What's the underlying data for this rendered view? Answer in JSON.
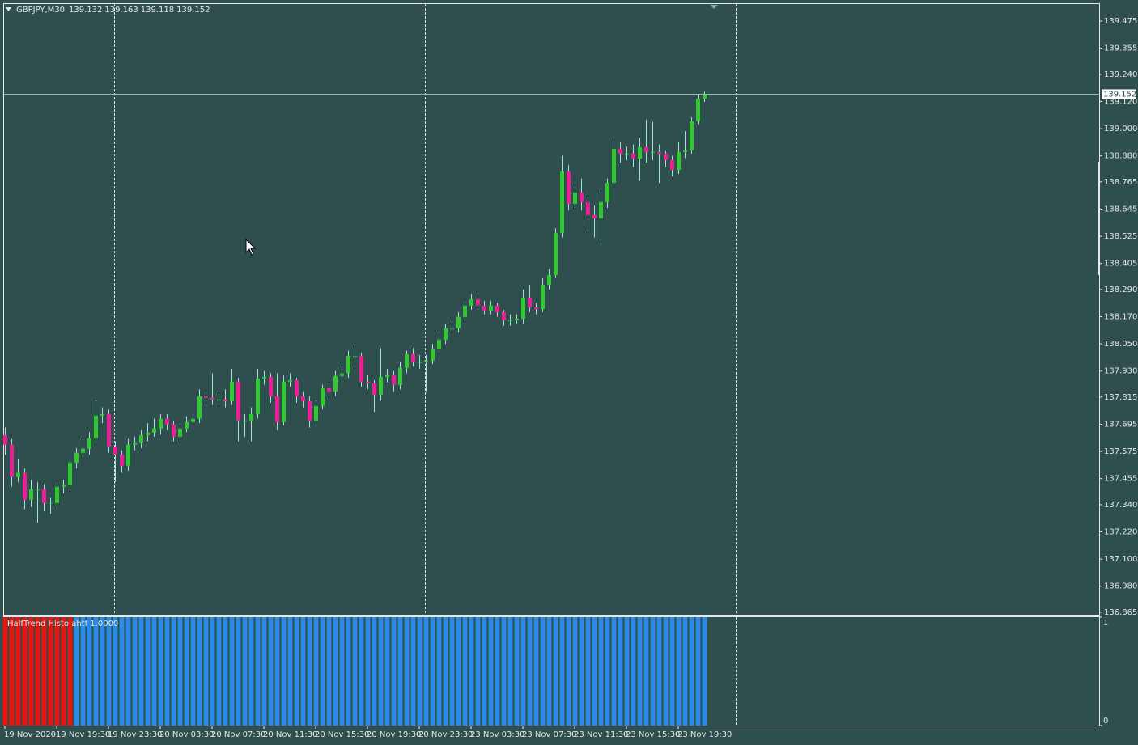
{
  "chart_data": [
    {
      "type": "candlestick",
      "symbol": "GBPJPY,M30",
      "up_color": "#32c832",
      "down_color": "#ec1e94",
      "wick_color": "#9fe3d2",
      "ylim": [
        136.854,
        139.55
      ],
      "yticks": [
        139.475,
        139.355,
        {
          "value": 139.24,
          "label": "139.240"
        },
        {
          "value": 139.12,
          "label": "139.120"
        },
        {
          "value": 139,
          "label": "139.000"
        },
        {
          "value": 138.88,
          "label": "138.880"
        },
        138.765,
        138.645,
        138.525,
        138.405,
        {
          "value": 138.29,
          "label": "138.290"
        },
        {
          "value": 138.17,
          "label": "138.170"
        },
        {
          "value": 138.05,
          "label": "138.050"
        },
        {
          "value": 137.93,
          "label": "137.930"
        },
        137.815,
        137.695,
        137.575,
        137.455,
        {
          "value": 137.34,
          "label": "137.340"
        },
        {
          "value": 137.22,
          "label": "137.220"
        },
        {
          "value": 137.1,
          "label": "137.100"
        },
        {
          "value": 136.98,
          "label": "136.980"
        },
        136.865
      ],
      "categories": [
        "19 Nov 2020",
        null,
        null,
        null,
        null,
        null,
        null,
        null,
        "19 Nov 19:30",
        null,
        null,
        null,
        null,
        null,
        null,
        null,
        "19 Nov 23:30",
        null,
        null,
        null,
        null,
        null,
        null,
        null,
        "20 Nov 03:30",
        null,
        null,
        null,
        null,
        null,
        null,
        null,
        "20 Nov 07:30",
        null,
        null,
        null,
        null,
        null,
        null,
        null,
        "20 Nov 11:30",
        null,
        null,
        null,
        null,
        null,
        null,
        null,
        "20 Nov 15:30",
        null,
        null,
        null,
        null,
        null,
        null,
        null,
        "20 Nov 19:30",
        null,
        null,
        null,
        null,
        null,
        null,
        null,
        "20 Nov 23:30",
        null,
        null,
        null,
        null,
        null,
        null,
        null,
        "23 Nov 03:30",
        null,
        null,
        null,
        null,
        null,
        null,
        null,
        "23 Nov 07:30",
        null,
        null,
        null,
        null,
        null,
        null,
        null,
        "23 Nov 11:30",
        null,
        null,
        null,
        null,
        null,
        null,
        null,
        "23 Nov 15:30",
        null,
        null,
        null,
        null,
        null,
        null,
        null,
        "23 Nov 19:30",
        null,
        null,
        null,
        null
      ],
      "open": [
        137.647,
        137.605,
        137.462,
        137.48,
        137.362,
        137.408,
        137.408,
        137.347,
        137.347,
        137.419,
        137.426,
        137.526,
        137.569,
        137.587,
        137.633,
        137.733,
        137.74,
        137.597,
        137.562,
        137.512,
        137.605,
        137.612,
        137.647,
        137.658,
        137.676,
        137.719,
        137.694,
        137.64,
        137.676,
        137.705,
        137.719,
        137.819,
        137.812,
        137.804,
        137.804,
        137.797,
        137.883,
        137.712,
        137.712,
        137.74,
        137.897,
        137.904,
        137.819,
        137.705,
        137.883,
        137.89,
        137.819,
        137.797,
        137.712,
        137.776,
        137.854,
        137.84,
        137.908,
        137.919,
        137.997,
        137.997,
        137.883,
        137.876,
        137.826,
        137.904,
        137.912,
        137.869,
        137.944,
        138.004,
        137.969,
        137.969,
        137.976,
        138.026,
        138.069,
        138.119,
        138.119,
        138.169,
        138.219,
        138.247,
        138.219,
        138.197,
        138.219,
        138.19,
        138.154,
        138.154,
        138.161,
        138.254,
        138.211,
        138.204,
        138.311,
        138.354,
        138.54,
        138.811,
        138.668,
        138.718,
        138.676,
        138.618,
        138.604,
        138.676,
        138.761,
        138.911,
        138.89,
        138.89,
        138.868,
        138.918,
        138.897,
        138.897,
        138.89,
        138.861,
        138.818,
        138.897,
        138.904,
        139.033,
        139.132
      ],
      "high": [
        137.68,
        137.63,
        137.54,
        137.5,
        137.45,
        137.44,
        137.43,
        137.37,
        137.44,
        137.45,
        137.54,
        137.59,
        137.63,
        137.66,
        137.8,
        137.77,
        137.76,
        137.62,
        137.58,
        137.63,
        137.64,
        137.67,
        137.7,
        137.72,
        137.74,
        137.74,
        137.71,
        137.7,
        137.73,
        137.74,
        137.85,
        137.84,
        137.92,
        137.83,
        137.85,
        137.94,
        137.9,
        137.74,
        137.77,
        137.94,
        137.93,
        137.92,
        137.92,
        137.91,
        137.92,
        137.9,
        137.84,
        137.82,
        137.8,
        137.87,
        137.88,
        137.93,
        137.95,
        138.02,
        138.05,
        138.01,
        137.91,
        137.89,
        138.03,
        137.94,
        137.93,
        137.97,
        138.02,
        138.03,
        138,
        138,
        138.05,
        138.09,
        138.14,
        138.15,
        138.19,
        138.24,
        138.27,
        138.26,
        138.24,
        138.24,
        138.23,
        138.2,
        138.18,
        138.18,
        138.29,
        138.31,
        138.23,
        138.34,
        138.38,
        138.56,
        138.88,
        138.84,
        138.76,
        138.78,
        138.7,
        138.66,
        138.72,
        138.78,
        138.96,
        138.94,
        138.92,
        138.93,
        138.96,
        139.04,
        139.03,
        138.93,
        138.9,
        138.88,
        138.94,
        138.99,
        139.05,
        139.15,
        139.163
      ],
      "low": [
        137.56,
        137.42,
        137.44,
        137.32,
        137.33,
        137.26,
        137.31,
        137.3,
        137.32,
        137.39,
        137.4,
        137.5,
        137.55,
        137.56,
        137.61,
        137.7,
        137.57,
        137.44,
        137.48,
        137.49,
        137.58,
        137.59,
        137.62,
        137.64,
        137.65,
        137.67,
        137.62,
        137.62,
        137.66,
        137.69,
        137.7,
        137.79,
        137.78,
        137.78,
        137.77,
        137.78,
        137.62,
        137.64,
        137.62,
        137.72,
        137.87,
        137.79,
        137.67,
        137.69,
        137.86,
        137.79,
        137.77,
        137.68,
        137.69,
        137.76,
        137.82,
        137.82,
        137.89,
        137.9,
        137.96,
        137.86,
        137.85,
        137.75,
        137.8,
        137.88,
        137.84,
        137.85,
        137.92,
        137.95,
        137.94,
        137.84,
        137.96,
        138.01,
        138.05,
        138.09,
        138.1,
        138.15,
        138.2,
        138.2,
        138.18,
        138.18,
        138.17,
        138.13,
        138.13,
        138.14,
        138.14,
        138.19,
        138.18,
        138.19,
        138.29,
        138.34,
        138.52,
        138.64,
        138.65,
        138.64,
        138.56,
        138.52,
        138.49,
        138.65,
        138.74,
        138.85,
        138.86,
        138.83,
        138.77,
        138.85,
        138.86,
        138.76,
        138.83,
        138.79,
        138.8,
        138.87,
        138.89,
        139.02,
        139.118
      ],
      "close": [
        137.605,
        137.462,
        137.48,
        137.362,
        137.408,
        137.408,
        137.347,
        137.347,
        137.419,
        137.426,
        137.526,
        137.569,
        137.587,
        137.633,
        137.733,
        137.74,
        137.597,
        137.562,
        137.512,
        137.605,
        137.612,
        137.647,
        137.658,
        137.676,
        137.719,
        137.694,
        137.64,
        137.676,
        137.705,
        137.719,
        137.819,
        137.812,
        137.804,
        137.804,
        137.797,
        137.883,
        137.712,
        137.712,
        137.74,
        137.897,
        137.904,
        137.819,
        137.705,
        137.883,
        137.89,
        137.819,
        137.797,
        137.712,
        137.776,
        137.854,
        137.84,
        137.908,
        137.919,
        137.997,
        137.997,
        137.883,
        137.876,
        137.826,
        137.904,
        137.912,
        137.869,
        137.944,
        138.004,
        137.969,
        137.969,
        137.976,
        138.026,
        138.069,
        138.119,
        138.119,
        138.169,
        138.219,
        138.247,
        138.219,
        138.197,
        138.219,
        138.19,
        138.154,
        138.154,
        138.161,
        138.254,
        138.211,
        138.204,
        138.311,
        138.354,
        138.54,
        138.811,
        138.668,
        138.718,
        138.676,
        138.618,
        138.604,
        138.676,
        138.761,
        138.911,
        138.89,
        138.89,
        138.868,
        138.918,
        138.897,
        138.897,
        138.89,
        138.861,
        138.818,
        138.897,
        138.904,
        139.033,
        139.132,
        139.152
      ]
    },
    {
      "type": "bar",
      "label": "HalfTrend Histo ahtf 1.0000",
      "ylim": [
        0,
        1
      ],
      "yticks": [
        1,
        0
      ],
      "values": [
        1,
        1,
        1,
        1,
        1,
        1,
        1,
        1,
        1,
        1,
        1,
        1,
        1,
        1,
        1,
        1,
        1,
        1,
        1,
        1,
        1,
        1,
        1,
        1,
        1,
        1,
        1,
        1,
        1,
        1,
        1,
        1,
        1,
        1,
        1,
        1,
        1,
        1,
        1,
        1,
        1,
        1,
        1,
        1,
        1,
        1,
        1,
        1,
        1,
        1,
        1,
        1,
        1,
        1,
        1,
        1,
        1,
        1,
        1,
        1,
        1,
        1,
        1,
        1,
        1,
        1,
        1,
        1,
        1,
        1,
        1,
        1,
        1,
        1,
        1,
        1,
        1,
        1,
        1,
        1,
        1,
        1,
        1,
        1,
        1,
        1,
        1,
        1,
        1,
        1,
        1,
        1,
        1,
        1,
        1,
        1,
        1,
        1,
        1,
        1,
        1,
        1,
        1,
        1,
        1,
        1,
        1,
        1,
        1
      ],
      "colors": [
        "#e8140e",
        "#e8140e",
        "#e8140e",
        "#e8140e",
        "#e8140e",
        "#e8140e",
        "#e8140e",
        "#e8140e",
        "#e8140e",
        "#e8140e",
        "#e8140e",
        "#2a8be6",
        "#2a8be6",
        "#2a8be6",
        "#2a8be6",
        "#2a8be6",
        "#2a8be6",
        "#2a8be6",
        "#2a8be6",
        "#2a8be6",
        "#2a8be6",
        "#2a8be6",
        "#2a8be6",
        "#2a8be6",
        "#2a8be6",
        "#2a8be6",
        "#2a8be6",
        "#2a8be6",
        "#2a8be6",
        "#2a8be6",
        "#2a8be6",
        "#2a8be6",
        "#2a8be6",
        "#2a8be6",
        "#2a8be6",
        "#2a8be6",
        "#2a8be6",
        "#2a8be6",
        "#2a8be6",
        "#2a8be6",
        "#2a8be6",
        "#2a8be6",
        "#2a8be6",
        "#2a8be6",
        "#2a8be6",
        "#2a8be6",
        "#2a8be6",
        "#2a8be6",
        "#2a8be6",
        "#2a8be6",
        "#2a8be6",
        "#2a8be6",
        "#2a8be6",
        "#2a8be6",
        "#2a8be6",
        "#2a8be6",
        "#2a8be6",
        "#2a8be6",
        "#2a8be6",
        "#2a8be6",
        "#2a8be6",
        "#2a8be6",
        "#2a8be6",
        "#2a8be6",
        "#2a8be6",
        "#2a8be6",
        "#2a8be6",
        "#2a8be6",
        "#2a8be6",
        "#2a8be6",
        "#2a8be6",
        "#2a8be6",
        "#2a8be6",
        "#2a8be6",
        "#2a8be6",
        "#2a8be6",
        "#2a8be6",
        "#2a8be6",
        "#2a8be6",
        "#2a8be6",
        "#2a8be6",
        "#2a8be6",
        "#2a8be6",
        "#2a8be6",
        "#2a8be6",
        "#2a8be6",
        "#2a8be6",
        "#2a8be6",
        "#2a8be6",
        "#2a8be6",
        "#2a8be6",
        "#2a8be6",
        "#2a8be6",
        "#2a8be6",
        "#2a8be6",
        "#2a8be6",
        "#2a8be6",
        "#2a8be6",
        "#2a8be6",
        "#2a8be6",
        "#2a8be6",
        "#2a8be6",
        "#2a8be6",
        "#2a8be6",
        "#2a8be6",
        "#2a8be6",
        "#2a8be6",
        "#2a8be6",
        "#2a8be6"
      ]
    }
  ]
}
